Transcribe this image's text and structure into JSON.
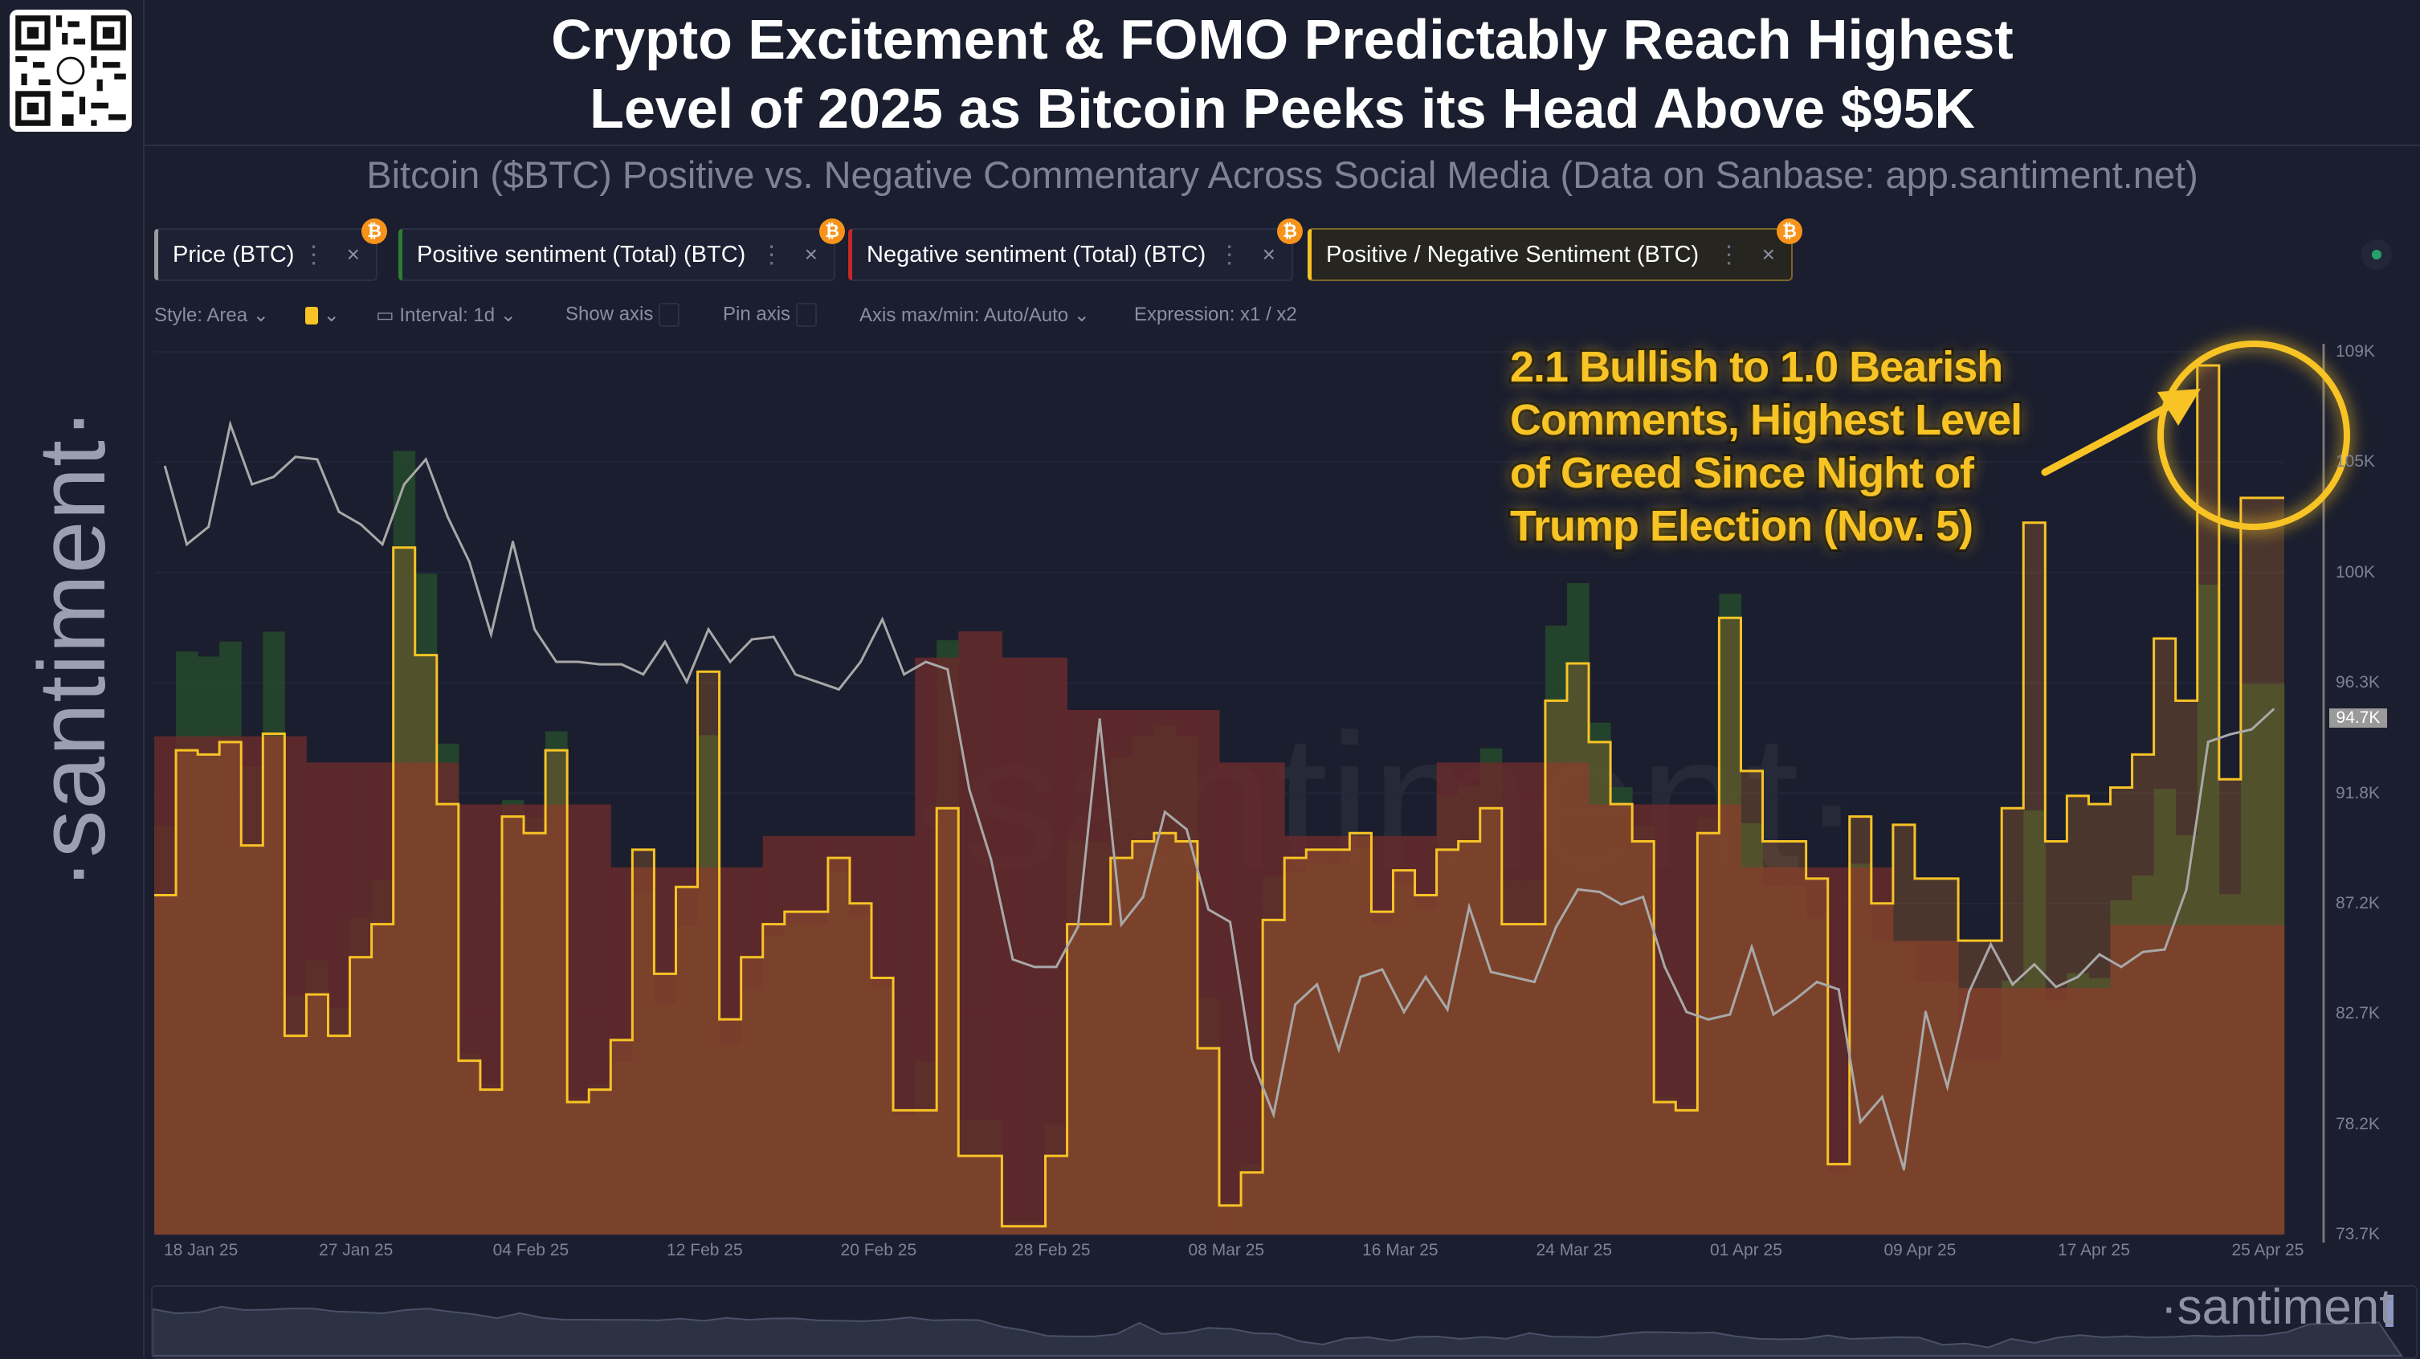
{
  "header": {
    "title_line1": "Crypto Excitement & FOMO Predictably Reach Highest",
    "title_line2": "Level of 2025 as Bitcoin Peeks its Head Above $95K",
    "subtitle": "Bitcoin ($BTC) Positive vs. Negative Commentary Across Social Media (Data on Sanbase: app.santiment.net)"
  },
  "brand": {
    "side_logo": "·santiment·",
    "watermark": "·santiment·",
    "navigator_logo": "·santiment"
  },
  "tabs": [
    {
      "label": "Price (BTC)",
      "color": "#9a9a9a",
      "badge": "₿"
    },
    {
      "label": "Positive sentiment (Total) (BTC)",
      "color": "#2e7d32",
      "badge": "₿"
    },
    {
      "label": "Negative sentiment (Total) (BTC)",
      "color": "#c62828",
      "badge": "₿"
    },
    {
      "label": "Positive / Negative Sentiment (BTC)",
      "color": "#f7c325",
      "badge": "₿",
      "active": true
    }
  ],
  "toolbar": {
    "style": "Style: Area",
    "color_swatch": "#f7c325",
    "interval": "Interval: 1d",
    "show_axis": "Show axis",
    "pin_axis": "Pin axis",
    "axis_maxmin": "Axis max/min: Auto/Auto",
    "expression": "Expression: x1 / x2"
  },
  "annotation": {
    "text": "2.1 Bullish to 1.0 Bearish Comments, Highest Level of Greed Since Night of Trump Election (Nov. 5)",
    "color": "#f7c325"
  },
  "chart_data": {
    "type": "line",
    "start_date": "2025-01-18",
    "end_date": "2025-04-25",
    "x_tick_labels": [
      "18 Jan 25",
      "27 Jan 25",
      "04 Feb 25",
      "12 Feb 25",
      "20 Feb 25",
      "28 Feb 25",
      "08 Mar 25",
      "16 Mar 25",
      "24 Mar 25",
      "01 Apr 25",
      "09 Apr 25",
      "17 Apr 25",
      "25 Apr 25"
    ],
    "y_tick_labels": [
      "109K",
      "105K",
      "100K",
      "96.3K",
      "91.8K",
      "87.2K",
      "82.7K",
      "78.2K",
      "73.7K"
    ],
    "ylim": [
      73700,
      109000
    ],
    "current_price_label": "94.7K",
    "grid": true,
    "series": [
      {
        "name": "Price (BTC)",
        "color": "#9a9a9a",
        "style": "line",
        "values": [
          104400,
          101300,
          102000,
          106100,
          103700,
          104000,
          104800,
          104700,
          102600,
          102100,
          101300,
          103700,
          104700,
          102400,
          100600,
          97700,
          101400,
          97900,
          96600,
          96600,
          96500,
          96500,
          96100,
          97400,
          95800,
          97900,
          96600,
          97500,
          97600,
          96100,
          95800,
          95500,
          96600,
          98300,
          96100,
          96600,
          96300,
          91500,
          88700,
          84700,
          84400,
          84400,
          86000,
          94300,
          86100,
          87200,
          90600,
          89900,
          86700,
          86200,
          80700,
          78500,
          82900,
          83700,
          81100,
          84000,
          84300,
          82600,
          84000,
          82700,
          86800,
          84200,
          84000,
          83800,
          86000,
          87500,
          87400,
          86900,
          87200,
          84400,
          82600,
          82300,
          82500,
          85200,
          82500,
          83100,
          83800,
          83500,
          78200,
          79200,
          76300,
          82600,
          79600,
          83400,
          85300,
          83700,
          84500,
          83600,
          84000,
          84900,
          84400,
          85000,
          85100,
          87500,
          93400,
          93700,
          93900,
          94700
        ]
      },
      {
        "name": "Positive / Negative Sentiment (BTC)",
        "color": "#f7c325",
        "style": "step-area",
        "values": [
          0.82,
          1.17,
          1.16,
          1.19,
          0.94,
          1.21,
          0.48,
          0.58,
          0.48,
          0.67,
          0.75,
          1.66,
          1.4,
          1.04,
          0.42,
          0.35,
          1.01,
          0.97,
          1.17,
          0.32,
          0.35,
          0.47,
          0.93,
          0.63,
          0.84,
          1.36,
          0.52,
          0.67,
          0.75,
          0.78,
          0.78,
          0.91,
          0.8,
          0.62,
          0.3,
          0.3,
          1.03,
          0.19,
          0.19,
          0.02,
          0.02,
          0.19,
          0.75,
          0.75,
          0.91,
          0.95,
          0.97,
          0.95,
          0.45,
          0.07,
          0.15,
          0.76,
          0.91,
          0.93,
          0.93,
          0.97,
          0.78,
          0.88,
          0.82,
          0.93,
          0.95,
          1.03,
          0.75,
          0.75,
          1.29,
          1.38,
          1.19,
          1.04,
          0.95,
          0.32,
          0.3,
          0.97,
          1.49,
          1.12,
          0.95,
          0.95,
          0.86,
          0.17,
          1.01,
          0.8,
          0.99,
          0.86,
          0.86,
          0.71,
          0.71,
          1.03,
          1.72,
          0.95,
          1.06,
          1.04,
          1.08,
          1.16,
          1.44,
          1.29,
          2.1,
          1.1,
          1.78,
          1.78
        ]
      },
      {
        "name": "Negative sentiment (Total) (BTC)",
        "color": "#c62828",
        "style": "step-area",
        "values": [
          950,
          950,
          950,
          950,
          950,
          950,
          950,
          900,
          900,
          900,
          900,
          900,
          900,
          900,
          820,
          820,
          820,
          820,
          820,
          820,
          820,
          700,
          700,
          700,
          700,
          700,
          700,
          700,
          760,
          760,
          760,
          760,
          760,
          760,
          760,
          1100,
          1100,
          1150,
          1150,
          1100,
          1100,
          1100,
          1000,
          1000,
          1000,
          1000,
          1000,
          1000,
          1000,
          900,
          900,
          900,
          760,
          760,
          760,
          760,
          760,
          760,
          760,
          900,
          900,
          900,
          900,
          900,
          900,
          900,
          820,
          820,
          820,
          820,
          820,
          820,
          820,
          700,
          700,
          700,
          700,
          700,
          700,
          700,
          560,
          560,
          560,
          470,
          470,
          470,
          470,
          470,
          470,
          470,
          590,
          590,
          590,
          590,
          590,
          590,
          590,
          590
        ]
      },
      {
        "name": "Positive sentiment (Total) (BTC)",
        "color": "#2e7d32",
        "style": "step-area"
      }
    ]
  }
}
